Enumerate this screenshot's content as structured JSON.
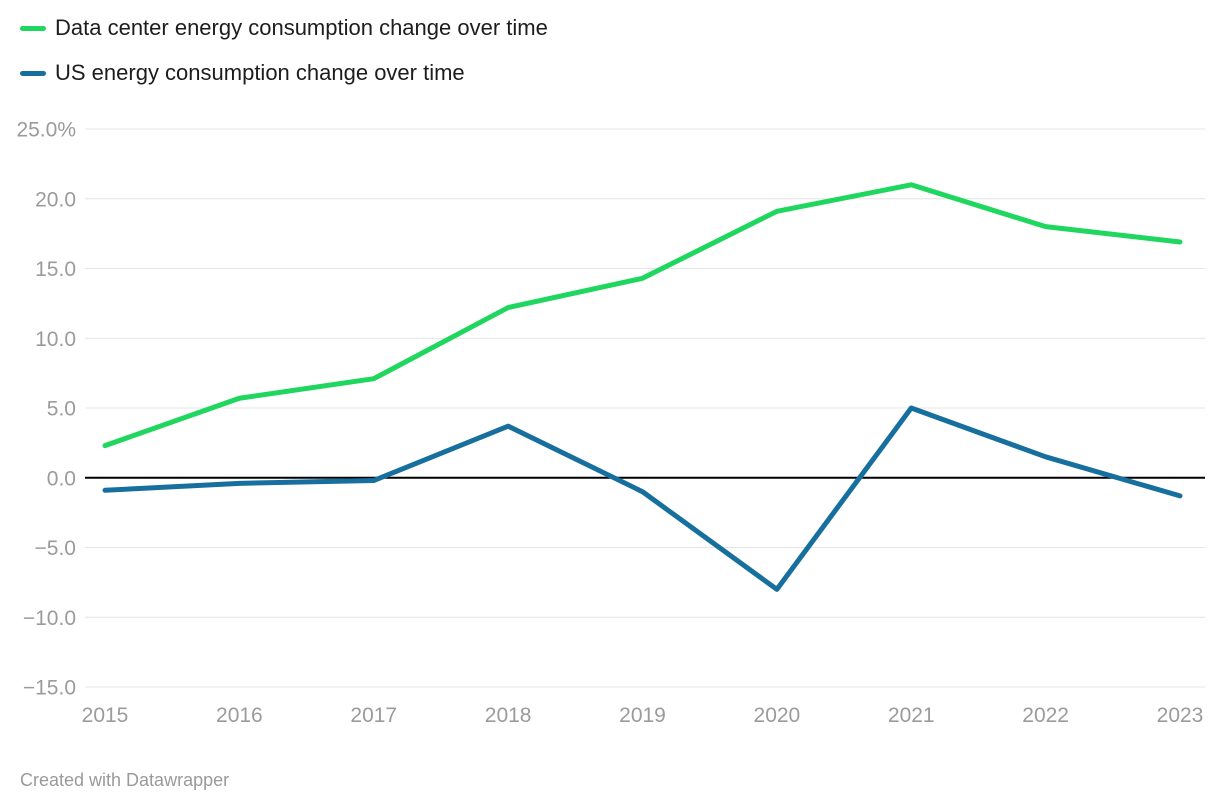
{
  "legend": {
    "items": [
      {
        "label": "Data center energy consumption change over time",
        "color": "#1fd65f"
      },
      {
        "label": "US energy consumption change over time",
        "color": "#176f9e"
      }
    ]
  },
  "chart_data": {
    "type": "line",
    "x": [
      "2015",
      "2016",
      "2017",
      "2018",
      "2019",
      "2020",
      "2021",
      "2022",
      "2023"
    ],
    "series": [
      {
        "name": "Data center energy consumption change over time",
        "color": "#1fd65f",
        "values": [
          2.3,
          5.7,
          7.1,
          12.2,
          14.3,
          19.1,
          21.0,
          18.0,
          16.9
        ]
      },
      {
        "name": "US energy consumption change over time",
        "color": "#176f9e",
        "values": [
          -0.9,
          -0.4,
          -0.2,
          3.7,
          -1.0,
          -8.0,
          5.0,
          1.5,
          -1.3
        ]
      }
    ],
    "title": "",
    "xlabel": "",
    "ylabel": "",
    "unit": "%",
    "ylim": [
      -15,
      25
    ],
    "y_ticks": [
      {
        "value": 25,
        "label": "25.0%"
      },
      {
        "value": 20,
        "label": "20.0"
      },
      {
        "value": 15,
        "label": "15.0"
      },
      {
        "value": 10,
        "label": "10.0"
      },
      {
        "value": 5,
        "label": "5.0"
      },
      {
        "value": 0,
        "label": "0.0"
      },
      {
        "value": -5,
        "label": "−5.0"
      },
      {
        "value": -10,
        "label": "−10.0"
      },
      {
        "value": -15,
        "label": "−15.0"
      }
    ],
    "grid": "horizontal",
    "zero_line": true,
    "legend_position": "top-left",
    "colors": {
      "gridline": "#e4e4e4",
      "zero_line": "#000000",
      "tick_text": "#9b9b9b",
      "legend_text": "#1d1d1d"
    }
  },
  "footer": {
    "credit": "Created with Datawrapper"
  }
}
